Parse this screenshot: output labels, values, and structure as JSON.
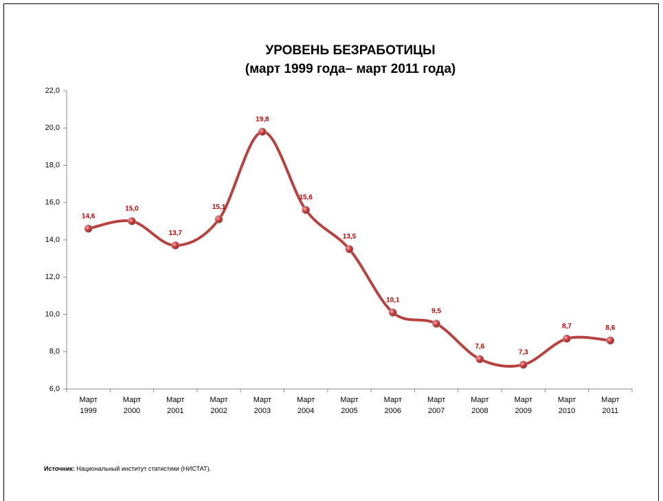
{
  "chart_data": {
    "type": "line",
    "title": "УРОВЕНЬ БЕЗРАБОТИЦЫ",
    "subtitle": "(март 1999 года– март 2011 года)",
    "categories": [
      "Март 1999",
      "Март 2000",
      "Март 2001",
      "Март 2002",
      "Март 2003",
      "Март 2004",
      "Март 2005",
      "Март 2006",
      "Март 2007",
      "Март 2008",
      "Март 2009",
      "Март 2010",
      "Март 2011"
    ],
    "values": [
      14.6,
      15.0,
      13.7,
      15.1,
      19.8,
      15.6,
      13.5,
      10.1,
      9.5,
      7.6,
      7.3,
      8.7,
      8.6
    ],
    "value_labels": [
      "14,6",
      "15,0",
      "13,7",
      "15,1",
      "19,8",
      "15,6",
      "13,5",
      "10,1",
      "9,5",
      "7,6",
      "7,3",
      "8,7",
      "8,6"
    ],
    "color": "#b8423f",
    "smooth": true,
    "ylim": [
      6,
      22
    ],
    "yticks": [
      {
        "value": 6,
        "label": "6,0"
      },
      {
        "value": 8,
        "label": "8,0"
      },
      {
        "value": 10,
        "label": "10,0"
      },
      {
        "value": 12,
        "label": "12,0"
      },
      {
        "value": 14,
        "label": "14,0"
      },
      {
        "value": 16,
        "label": "16,0"
      },
      {
        "value": 18,
        "label": "18,0"
      },
      {
        "value": 20,
        "label": "20,0"
      },
      {
        "value": 22,
        "label": "22,0"
      }
    ],
    "source": {
      "label": "Источник:",
      "text": "Национальный институт статистики (НИСТАТ)."
    }
  }
}
